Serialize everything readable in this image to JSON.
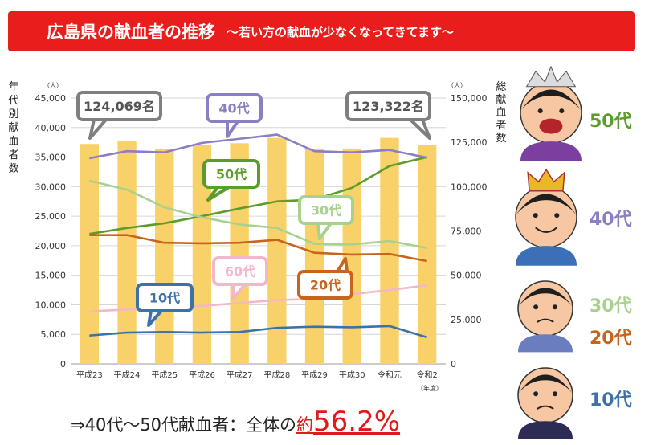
{
  "title": {
    "main": "広島県の献血者の推移",
    "sub": "〜若い方の献血が少なくなってきてます〜"
  },
  "chart_data": {
    "type": "bar",
    "categories": [
      "平成23",
      "平成24",
      "平成25",
      "平成26",
      "平成27",
      "平成28",
      "平成29",
      "平成30",
      "令和元",
      "令和2"
    ],
    "x_unit": "（年度）",
    "left_axis": {
      "label": "年代別献血者数",
      "unit": "（人）",
      "ylim": [
        0,
        45000
      ],
      "ticks": [
        "0",
        "5,000",
        "10,000",
        "15,000",
        "20,000",
        "25,000",
        "30,000",
        "35,000",
        "40,000",
        "45,000"
      ]
    },
    "right_axis": {
      "label": "総献血者数",
      "unit": "（人）",
      "ylim": [
        0,
        150000
      ],
      "ticks": [
        "0",
        "25,000",
        "50,000",
        "75,000",
        "100,000",
        "125,000",
        "150,000"
      ]
    },
    "bars": {
      "axis": "right",
      "color": "#f9d169",
      "values": [
        124069,
        125500,
        121000,
        123500,
        124500,
        127500,
        121000,
        121500,
        127500,
        123322
      ]
    },
    "series": [
      {
        "name": "50代",
        "color": "#5d9b2b",
        "values": [
          22000,
          23000,
          23800,
          25000,
          26300,
          27500,
          27800,
          29800,
          33500,
          35000
        ]
      },
      {
        "name": "40代",
        "color": "#8a7ec4",
        "values": [
          34800,
          36000,
          35800,
          37400,
          38100,
          38800,
          36000,
          35800,
          36200,
          34900
        ]
      },
      {
        "name": "30代",
        "color": "#a9d18e",
        "values": [
          31000,
          29500,
          26500,
          24800,
          23600,
          23000,
          20300,
          20200,
          20800,
          19600
        ]
      },
      {
        "name": "20代",
        "color": "#c8641e",
        "values": [
          21800,
          21800,
          20500,
          20400,
          20500,
          21000,
          18800,
          18500,
          18600,
          17400
        ]
      },
      {
        "name": "60代",
        "color": "#f4b7c9",
        "values": [
          8900,
          9200,
          9500,
          9800,
          10300,
          10800,
          11000,
          11800,
          12500,
          13300
        ]
      },
      {
        "name": "10代",
        "color": "#3d72a8",
        "values": [
          4800,
          5300,
          5400,
          5300,
          5400,
          6100,
          6300,
          6200,
          6400,
          4500
        ]
      }
    ],
    "callouts": [
      {
        "text": "124,069名",
        "color": "#7f7f7f"
      },
      {
        "text": "123,322名",
        "color": "#7f7f7f"
      },
      {
        "text": "40代",
        "color": "#8a7ec4"
      },
      {
        "text": "50代",
        "color": "#5d9b2b"
      },
      {
        "text": "30代",
        "color": "#a9d18e"
      },
      {
        "text": "20代",
        "color": "#c8641e"
      },
      {
        "text": "60代",
        "color": "#f4b7c9"
      },
      {
        "text": "10代",
        "color": "#3d72a8"
      }
    ]
  },
  "side_legend": [
    {
      "text": "50代",
      "color": "#5d9b2b",
      "icon": "laughing-face-with-tiara-icon"
    },
    {
      "text": "40代",
      "color": "#8a7ec4",
      "icon": "smug-face-with-crown-icon"
    },
    {
      "text": "30代",
      "color": "#a9d18e",
      "icon": "worried-face-icon"
    },
    {
      "text": "20代",
      "color": "#c8641e"
    },
    {
      "text": "10代",
      "color": "#3d72a8",
      "icon": "downcast-face-icon"
    }
  ],
  "summary": {
    "prefix": "⇒40代〜50代献血者：全体の",
    "pre": "約",
    "value": "56.2%"
  }
}
